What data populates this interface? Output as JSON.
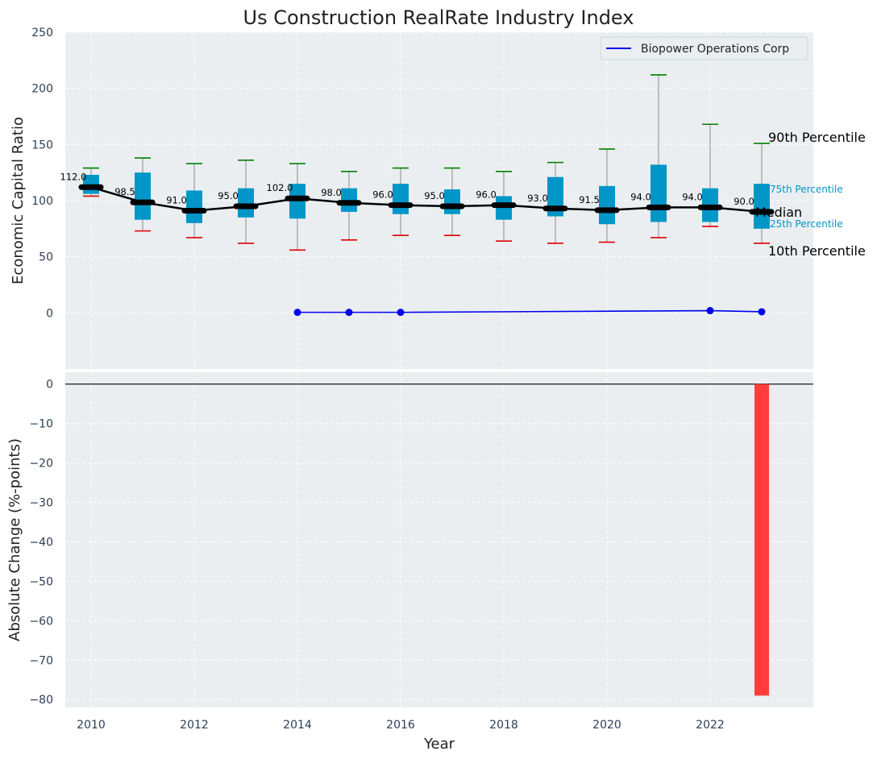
{
  "colors": {
    "panel_bg": "#eaeef0",
    "grid": "#ffffff",
    "box_fill": "#0096c8",
    "median_line": "#000000",
    "whisker_high": "#008000",
    "whisker_low": "#e00000",
    "whisker_stem": "#8a8a8a",
    "company_line": "#0000ee",
    "bar_negative": "#ff3b3b",
    "inline_label": "#0096c8",
    "tick_text": "#2d3f55"
  },
  "chart_data": [
    {
      "type": "box_line",
      "title": "Us Construction RealRate Industry Index",
      "xlabel": "",
      "ylabel": "Economic Capital Ratio",
      "xlim": [
        2009.5,
        2024.0
      ],
      "ylim": [
        -50,
        250
      ],
      "yticks": [
        0,
        50,
        100,
        150,
        200,
        250
      ],
      "grid": true,
      "legend": {
        "position": "top-right",
        "entries": [
          "Biopower Operations Corp"
        ]
      },
      "years": [
        2010,
        2011,
        2012,
        2013,
        2014,
        2015,
        2016,
        2017,
        2018,
        2019,
        2020,
        2021,
        2022,
        2023
      ],
      "p10": [
        104,
        73,
        67,
        62,
        56,
        65,
        69,
        69,
        64,
        62,
        63,
        67,
        77,
        62
      ],
      "p25": [
        106,
        83,
        80,
        85,
        84,
        90,
        88,
        88,
        83,
        86,
        79,
        81,
        81,
        75
      ],
      "median": [
        112.0,
        98.5,
        91.0,
        95.0,
        102.0,
        98.0,
        96.0,
        95.0,
        96.0,
        93.0,
        91.5,
        94.0,
        94.0,
        90.0
      ],
      "median_labels": [
        "112.0",
        "98.5",
        "91.0",
        "95.0",
        "102.0",
        "98.0",
        "96.0",
        "95.0",
        "96.0",
        "93.0",
        "91.5",
        "94.0",
        "94.0",
        "90.0"
      ],
      "p75": [
        123,
        125,
        109,
        111,
        115,
        111,
        115,
        110,
        104,
        121,
        113,
        132,
        111,
        115
      ],
      "p90": [
        129,
        138,
        133,
        136,
        133,
        126,
        129,
        129,
        126,
        134,
        146,
        212,
        168,
        151
      ],
      "company": {
        "name": "Biopower Operations Corp",
        "years": [
          2014,
          2015,
          2016,
          2022,
          2023
        ],
        "values": [
          0.5,
          0.5,
          0.5,
          2.0,
          1.0
        ]
      },
      "annotations": {
        "p90": "90th Percentile",
        "p75": "75th Percentile",
        "median": "Median",
        "p25": "25th Percentile",
        "p10": "10th Percentile"
      }
    },
    {
      "type": "bar",
      "title": "",
      "xlabel": "Year",
      "ylabel": "Absolute Change (%-points)",
      "xlim": [
        2009.5,
        2024.0
      ],
      "ylim": [
        -82,
        3
      ],
      "yticks": [
        0,
        -10,
        -20,
        -30,
        -40,
        -50,
        -60,
        -70,
        -80
      ],
      "ytick_labels": [
        "0",
        "−10",
        "−20",
        "−30",
        "−40",
        "−50",
        "−60",
        "−70",
        "−80"
      ],
      "xticks": [
        2010,
        2012,
        2014,
        2016,
        2018,
        2020,
        2022
      ],
      "grid": true,
      "x": [
        2023
      ],
      "values": [
        -79
      ]
    }
  ]
}
